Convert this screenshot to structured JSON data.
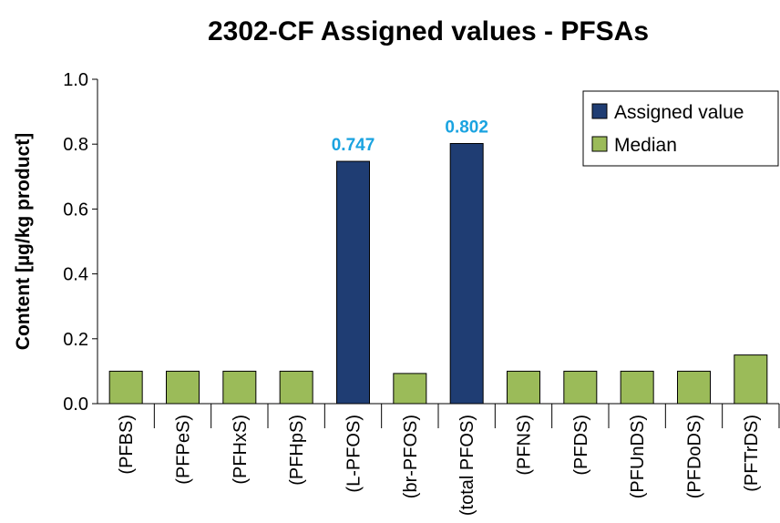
{
  "chart_data": {
    "type": "bar",
    "title": "2302-CF  Assigned values - PFSAs",
    "y_label": "Content  [µg/kg product]",
    "categories": [
      "(PFBS)",
      "(PFPeS)",
      "(PFHxS)",
      "(PFHpS)",
      "(L-PFOS)",
      "(br-PFOS)",
      "(total PFOS)",
      "(PFNS)",
      "(PFDS)",
      "(PFUnDS)",
      "(PFDoDS)",
      "(PFTrDS)"
    ],
    "series": [
      {
        "name": "Assigned value",
        "color": "#1f3d73",
        "values": [
          null,
          null,
          null,
          null,
          0.747,
          null,
          0.802,
          null,
          null,
          null,
          null,
          null
        ],
        "data_labels": true,
        "label_color": "#1aa3e0"
      },
      {
        "name": "Median",
        "color": "#9bbb59",
        "values": [
          0.1,
          0.1,
          0.1,
          0.1,
          null,
          0.093,
          null,
          0.1,
          0.1,
          0.1,
          0.1,
          0.15
        ],
        "data_labels": false
      }
    ],
    "ylim": [
      0,
      1
    ],
    "yticks": [
      {
        "value": 0,
        "label": "0.0"
      },
      0.2,
      0.4,
      0.6,
      0.8,
      {
        "value": 1,
        "label": "1.0"
      }
    ],
    "grid": false,
    "legend": "top-right"
  }
}
